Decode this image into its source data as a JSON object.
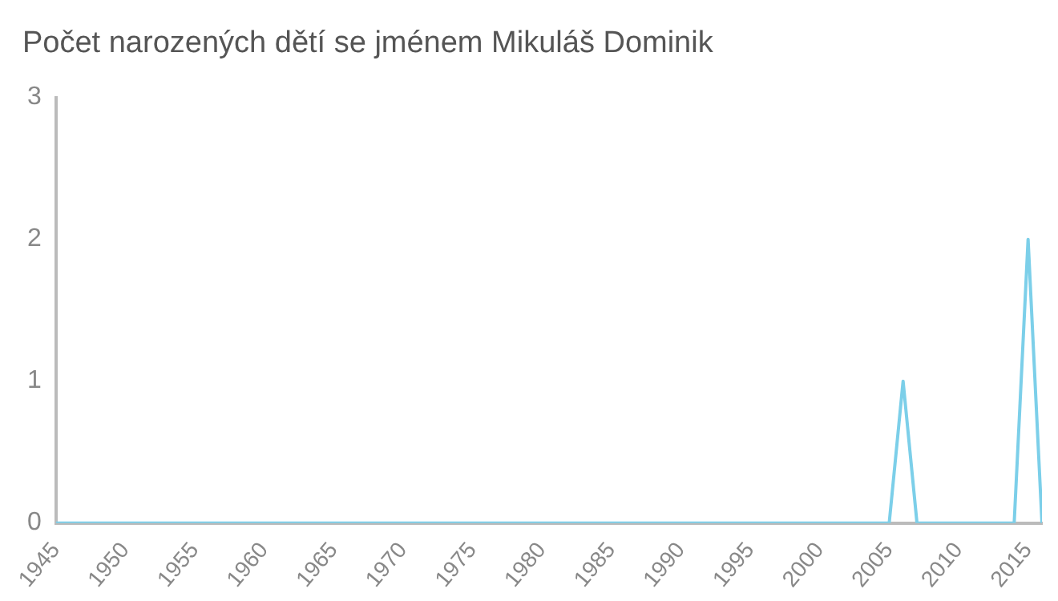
{
  "chart_data": {
    "type": "line",
    "title": "Počet narozených dětí se jménem Mikuláš Dominik",
    "x": [
      1945,
      2005,
      2006,
      2007,
      2014,
      2015,
      2016
    ],
    "series": [
      {
        "color": "#7ccfe9",
        "values": [
          0,
          0,
          1,
          0,
          0,
          2,
          0
        ]
      }
    ],
    "xlim": [
      1945,
      2016
    ],
    "xticks": [
      1945,
      1950,
      1955,
      1960,
      1965,
      1970,
      1975,
      1980,
      1985,
      1990,
      1995,
      2000,
      2005,
      2010,
      2015
    ],
    "ylim": [
      0,
      3
    ],
    "yticks": [
      0,
      1,
      2,
      3
    ],
    "grid": false,
    "legend": false,
    "marker": "none",
    "line_style": "solid"
  }
}
